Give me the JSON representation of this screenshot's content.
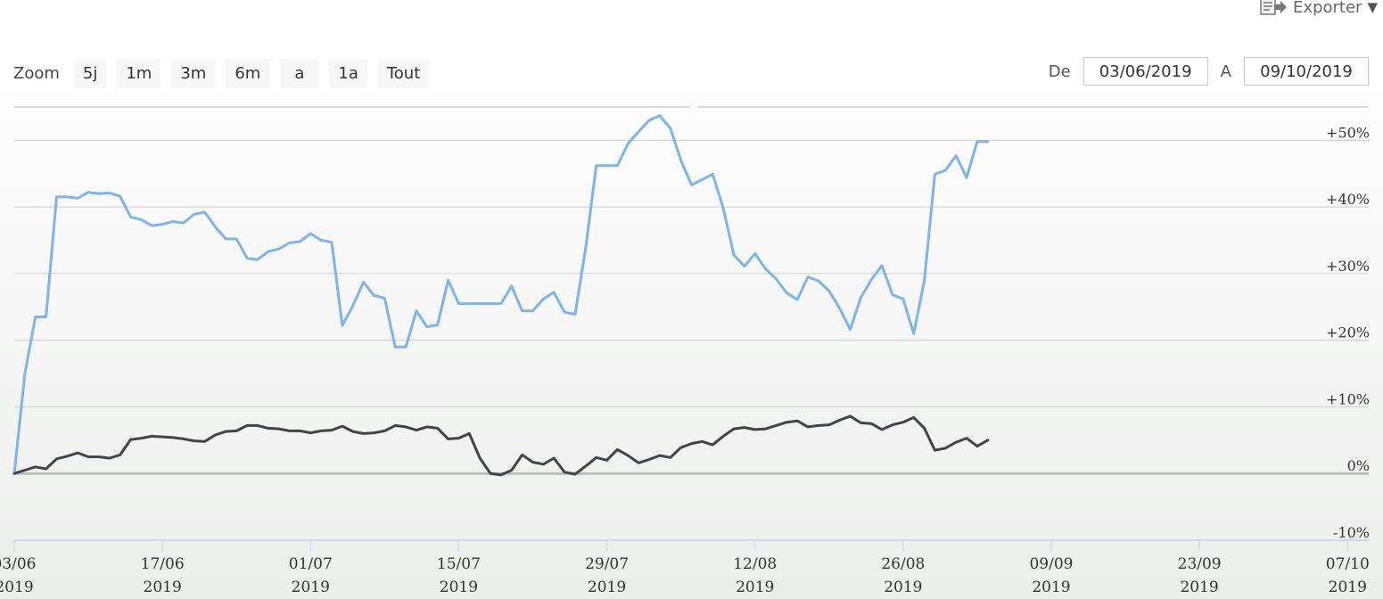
{
  "export": {
    "label": "Exporter"
  },
  "zoom": {
    "label": "Zoom",
    "buttons": [
      "5j",
      "1m",
      "3m",
      "6m",
      "a",
      "1a",
      "Tout"
    ]
  },
  "range": {
    "from_label": "De",
    "from_value": "03/06/2019",
    "to_label": "A",
    "to_value": "09/10/2019"
  },
  "colors": {
    "series1": "#7cb5ec",
    "series2": "#434348",
    "grid": "#cccccc",
    "zero": "#bdbdbd"
  },
  "chart_data": {
    "type": "line",
    "x_start": "2019-06-03",
    "x_end": "2019-10-09",
    "ylim": [
      -10,
      55
    ],
    "grid": true,
    "y_ticks": [
      {
        "v": 50,
        "label": "+50%"
      },
      {
        "v": 40,
        "label": "+40%"
      },
      {
        "v": 30,
        "label": "+30%"
      },
      {
        "v": 20,
        "label": "+20%"
      },
      {
        "v": 10,
        "label": "+10%"
      },
      {
        "v": 0,
        "label": "0%"
      },
      {
        "v": -10,
        "label": "-10%"
      }
    ],
    "x_ticks": [
      {
        "date": "2019-06-03",
        "day": "03/06",
        "year": "2019"
      },
      {
        "date": "2019-06-17",
        "day": "17/06",
        "year": "2019"
      },
      {
        "date": "2019-07-01",
        "day": "01/07",
        "year": "2019"
      },
      {
        "date": "2019-07-15",
        "day": "15/07",
        "year": "2019"
      },
      {
        "date": "2019-07-29",
        "day": "29/07",
        "year": "2019"
      },
      {
        "date": "2019-08-12",
        "day": "12/08",
        "year": "2019"
      },
      {
        "date": "2019-08-26",
        "day": "26/08",
        "year": "2019"
      },
      {
        "date": "2019-09-09",
        "day": "09/09",
        "year": "2019"
      },
      {
        "date": "2019-09-23",
        "day": "23/09",
        "year": "2019"
      },
      {
        "date": "2019-10-07",
        "day": "07/10",
        "year": "2019"
      }
    ],
    "series": [
      {
        "color": "#7cb5ec",
        "points": [
          [
            "2019-06-03",
            0
          ],
          [
            "2019-06-04",
            15
          ],
          [
            "2019-06-05",
            23.5
          ],
          [
            "2019-06-06",
            23.5
          ],
          [
            "2019-06-07",
            41.5
          ],
          [
            "2019-06-08",
            41.5
          ],
          [
            "2019-06-09",
            41.3
          ],
          [
            "2019-06-10",
            42.2
          ],
          [
            "2019-06-11",
            42
          ],
          [
            "2019-06-12",
            42.1
          ],
          [
            "2019-06-13",
            41.6
          ],
          [
            "2019-06-14",
            38.5
          ],
          [
            "2019-06-15",
            38.1
          ],
          [
            "2019-06-16",
            37.2
          ],
          [
            "2019-06-17",
            37.4
          ],
          [
            "2019-06-18",
            37.8
          ],
          [
            "2019-06-19",
            37.6
          ],
          [
            "2019-06-20",
            38.9
          ],
          [
            "2019-06-21",
            39.2
          ],
          [
            "2019-06-22",
            37
          ],
          [
            "2019-06-23",
            35.2
          ],
          [
            "2019-06-24",
            35.2
          ],
          [
            "2019-06-25",
            32.3
          ],
          [
            "2019-06-26",
            32.1
          ],
          [
            "2019-06-27",
            33.3
          ],
          [
            "2019-06-28",
            33.7
          ],
          [
            "2019-06-29",
            34.6
          ],
          [
            "2019-06-30",
            34.8
          ],
          [
            "2019-07-01",
            36
          ],
          [
            "2019-07-02",
            35
          ],
          [
            "2019-07-03",
            34.7
          ],
          [
            "2019-07-04",
            22.2
          ],
          [
            "2019-07-05",
            25.2
          ],
          [
            "2019-07-06",
            28.7
          ],
          [
            "2019-07-07",
            26.7
          ],
          [
            "2019-07-08",
            26.3
          ],
          [
            "2019-07-09",
            19
          ],
          [
            "2019-07-10",
            19
          ],
          [
            "2019-07-11",
            24.4
          ],
          [
            "2019-07-12",
            22
          ],
          [
            "2019-07-13",
            22.3
          ],
          [
            "2019-07-14",
            29
          ],
          [
            "2019-07-15",
            25.5
          ],
          [
            "2019-07-16",
            25.5
          ],
          [
            "2019-07-17",
            25.5
          ],
          [
            "2019-07-18",
            25.5
          ],
          [
            "2019-07-19",
            25.5
          ],
          [
            "2019-07-20",
            28.1
          ],
          [
            "2019-07-21",
            24.4
          ],
          [
            "2019-07-22",
            24.4
          ],
          [
            "2019-07-23",
            26.2
          ],
          [
            "2019-07-24",
            27.2
          ],
          [
            "2019-07-25",
            24.2
          ],
          [
            "2019-07-26",
            23.9
          ],
          [
            "2019-07-27",
            33.8
          ],
          [
            "2019-07-28",
            46.2
          ],
          [
            "2019-07-29",
            46.2
          ],
          [
            "2019-07-30",
            46.2
          ],
          [
            "2019-07-31",
            49.5
          ],
          [
            "2019-08-01",
            51.3
          ],
          [
            "2019-08-02",
            53
          ],
          [
            "2019-08-03",
            53.7
          ],
          [
            "2019-08-04",
            51.8
          ],
          [
            "2019-08-05",
            47
          ],
          [
            "2019-08-06",
            43.3
          ],
          [
            "2019-08-07",
            44.1
          ],
          [
            "2019-08-08",
            44.9
          ],
          [
            "2019-08-09",
            39.8
          ],
          [
            "2019-08-10",
            32.8
          ],
          [
            "2019-08-11",
            31.1
          ],
          [
            "2019-08-12",
            33
          ],
          [
            "2019-08-13",
            30.7
          ],
          [
            "2019-08-14",
            29.2
          ],
          [
            "2019-08-15",
            27.1
          ],
          [
            "2019-08-16",
            26.1
          ],
          [
            "2019-08-17",
            29.5
          ],
          [
            "2019-08-18",
            28.9
          ],
          [
            "2019-08-19",
            27.4
          ],
          [
            "2019-08-20",
            24.8
          ],
          [
            "2019-08-21",
            21.6
          ],
          [
            "2019-08-22",
            26.4
          ],
          [
            "2019-08-23",
            29.1
          ],
          [
            "2019-08-24",
            31.2
          ],
          [
            "2019-08-25",
            26.8
          ],
          [
            "2019-08-26",
            26.2
          ],
          [
            "2019-08-27",
            21
          ],
          [
            "2019-08-28",
            28.9
          ],
          [
            "2019-08-29",
            44.9
          ],
          [
            "2019-08-30",
            45.5
          ],
          [
            "2019-08-31",
            47.7
          ],
          [
            "2019-09-01",
            44.4
          ],
          [
            "2019-09-02",
            49.8
          ],
          [
            "2019-09-03",
            49.8
          ]
        ]
      },
      {
        "color": "#434348",
        "points": [
          [
            "2019-06-03",
            0
          ],
          [
            "2019-06-04",
            0.5
          ],
          [
            "2019-06-05",
            1
          ],
          [
            "2019-06-06",
            0.7
          ],
          [
            "2019-06-07",
            2.2
          ],
          [
            "2019-06-08",
            2.6
          ],
          [
            "2019-06-09",
            3.1
          ],
          [
            "2019-06-10",
            2.5
          ],
          [
            "2019-06-11",
            2.5
          ],
          [
            "2019-06-12",
            2.3
          ],
          [
            "2019-06-13",
            2.8
          ],
          [
            "2019-06-14",
            5.1
          ],
          [
            "2019-06-15",
            5.3
          ],
          [
            "2019-06-16",
            5.6
          ],
          [
            "2019-06-17",
            5.5
          ],
          [
            "2019-06-18",
            5.4
          ],
          [
            "2019-06-19",
            5.2
          ],
          [
            "2019-06-20",
            4.9
          ],
          [
            "2019-06-21",
            4.8
          ],
          [
            "2019-06-22",
            5.8
          ],
          [
            "2019-06-23",
            6.3
          ],
          [
            "2019-06-24",
            6.4
          ],
          [
            "2019-06-25",
            7.2
          ],
          [
            "2019-06-26",
            7.2
          ],
          [
            "2019-06-27",
            6.8
          ],
          [
            "2019-06-28",
            6.7
          ],
          [
            "2019-06-29",
            6.4
          ],
          [
            "2019-06-30",
            6.4
          ],
          [
            "2019-07-01",
            6.1
          ],
          [
            "2019-07-02",
            6.4
          ],
          [
            "2019-07-03",
            6.5
          ],
          [
            "2019-07-04",
            7.1
          ],
          [
            "2019-07-05",
            6.3
          ],
          [
            "2019-07-06",
            6
          ],
          [
            "2019-07-07",
            6.1
          ],
          [
            "2019-07-08",
            6.4
          ],
          [
            "2019-07-09",
            7.2
          ],
          [
            "2019-07-10",
            7
          ],
          [
            "2019-07-11",
            6.5
          ],
          [
            "2019-07-12",
            7
          ],
          [
            "2019-07-13",
            6.8
          ],
          [
            "2019-07-14",
            5.2
          ],
          [
            "2019-07-15",
            5.3
          ],
          [
            "2019-07-16",
            6
          ],
          [
            "2019-07-17",
            2.3
          ],
          [
            "2019-07-18",
            0
          ],
          [
            "2019-07-19",
            -0.2
          ],
          [
            "2019-07-20",
            0.5
          ],
          [
            "2019-07-21",
            2.8
          ],
          [
            "2019-07-22",
            1.7
          ],
          [
            "2019-07-23",
            1.4
          ],
          [
            "2019-07-24",
            2.3
          ],
          [
            "2019-07-25",
            0.2
          ],
          [
            "2019-07-26",
            -0.1
          ],
          [
            "2019-07-27",
            1.1
          ],
          [
            "2019-07-28",
            2.4
          ],
          [
            "2019-07-29",
            2
          ],
          [
            "2019-07-30",
            3.6
          ],
          [
            "2019-07-31",
            2.7
          ],
          [
            "2019-08-01",
            1.6
          ],
          [
            "2019-08-02",
            2.1
          ],
          [
            "2019-08-03",
            2.7
          ],
          [
            "2019-08-04",
            2.4
          ],
          [
            "2019-08-05",
            3.9
          ],
          [
            "2019-08-06",
            4.5
          ],
          [
            "2019-08-07",
            4.8
          ],
          [
            "2019-08-08",
            4.3
          ],
          [
            "2019-08-09",
            5.6
          ],
          [
            "2019-08-10",
            6.7
          ],
          [
            "2019-08-11",
            6.9
          ],
          [
            "2019-08-12",
            6.6
          ],
          [
            "2019-08-13",
            6.7
          ],
          [
            "2019-08-14",
            7.2
          ],
          [
            "2019-08-15",
            7.7
          ],
          [
            "2019-08-16",
            7.9
          ],
          [
            "2019-08-17",
            7
          ],
          [
            "2019-08-18",
            7.2
          ],
          [
            "2019-08-19",
            7.3
          ],
          [
            "2019-08-20",
            8
          ],
          [
            "2019-08-21",
            8.6
          ],
          [
            "2019-08-22",
            7.6
          ],
          [
            "2019-08-23",
            7.5
          ],
          [
            "2019-08-24",
            6.6
          ],
          [
            "2019-08-25",
            7.3
          ],
          [
            "2019-08-26",
            7.7
          ],
          [
            "2019-08-27",
            8.4
          ],
          [
            "2019-08-28",
            6.8
          ],
          [
            "2019-08-29",
            3.5
          ],
          [
            "2019-08-30",
            3.8
          ],
          [
            "2019-08-31",
            4.7
          ],
          [
            "2019-09-01",
            5.3
          ],
          [
            "2019-09-02",
            4.1
          ],
          [
            "2019-09-03",
            5
          ]
        ]
      }
    ]
  }
}
